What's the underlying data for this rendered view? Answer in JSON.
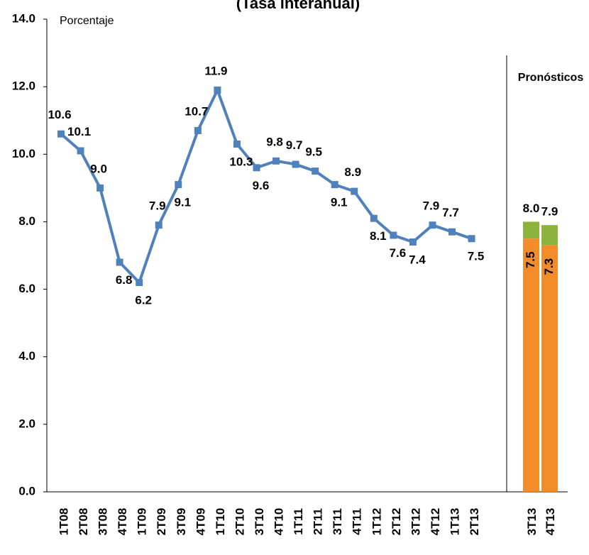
{
  "chart_data": [
    {
      "type": "line",
      "title": "(Tasa interanual)",
      "y_label": "Porcentaje",
      "categories": [
        "1T08",
        "2T08",
        "3T08",
        "4T08",
        "1T09",
        "2T09",
        "3T09",
        "4T09",
        "1T10",
        "2T10",
        "3T10",
        "4T10",
        "1T11",
        "2T11",
        "3T11",
        "4T11",
        "1T12",
        "2T12",
        "3T12",
        "4T12",
        "1T13",
        "2T13"
      ],
      "values": [
        10.6,
        10.1,
        9.0,
        6.8,
        6.2,
        7.9,
        9.1,
        10.7,
        11.9,
        10.3,
        9.6,
        9.8,
        9.7,
        9.5,
        9.1,
        8.9,
        8.1,
        7.6,
        7.4,
        7.9,
        7.7,
        7.5
      ],
      "value_labels": [
        "10.6",
        "10.1",
        "9.0",
        "6.8",
        "6.2",
        "7.9",
        "9.1",
        "10.7",
        "11.9",
        "10.3",
        "9.6",
        "9.8",
        "9.7",
        "9.5",
        "9.1",
        "8.9",
        "8.1",
        "7.6",
        "7.4",
        "7.9",
        "7.7",
        "7.5"
      ],
      "color": "#4f81bd",
      "ylim": [
        0,
        14
      ],
      "yticks": [
        {
          "value": 0,
          "label": "0.0"
        },
        {
          "value": 2,
          "label": "2.0"
        },
        {
          "value": 4,
          "label": "4.0"
        },
        {
          "value": 6,
          "label": "6.0"
        },
        {
          "value": 8,
          "label": "8.0"
        },
        {
          "value": 10,
          "label": "10.0"
        },
        {
          "value": 12,
          "label": "12.0"
        },
        {
          "value": 14,
          "label": "14.0"
        }
      ]
    },
    {
      "type": "stacked_bar",
      "title": "Pronósticos",
      "categories": [
        "3T13",
        "4T13"
      ],
      "series": [
        {
          "color": "#f28c28",
          "values": [
            7.5,
            7.3
          ]
        },
        {
          "color": "#8cb43c",
          "values": [
            0.5,
            0.6
          ]
        }
      ],
      "totals": [
        8.0,
        7.9
      ],
      "total_labels": [
        "8.0",
        "7.9"
      ],
      "ylim": [
        0,
        14
      ]
    }
  ]
}
